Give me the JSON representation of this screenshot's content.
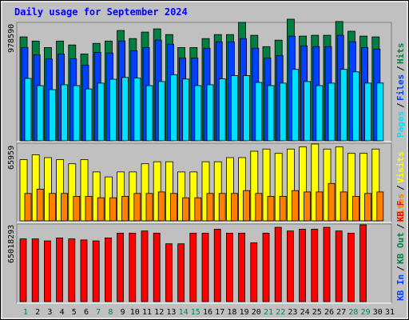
{
  "title": "Daily usage for September 2024",
  "colors": {
    "background": "#c0c0c0",
    "panel": "#c0c0c0",
    "title": "#0000ff",
    "hits": "#008040",
    "files": "#0040ff",
    "pages": "#00e0ff",
    "visits": "#ffff00",
    "sites": "#ff8000",
    "kbf": "#ff0000",
    "weekend_day": "#00805c",
    "weekday": "#000000"
  },
  "chart_data": [
    {
      "type": "bar",
      "panel": "top",
      "max_label": "978590",
      "ylim": [
        0,
        978590
      ],
      "legend": [
        {
          "label": "Pages",
          "color": "#00e0ff"
        },
        {
          "label": "Files",
          "color": "#0040ff"
        },
        {
          "label": "Hits",
          "color": "#008040"
        }
      ],
      "categories": [
        "1",
        "2",
        "3",
        "4",
        "5",
        "6",
        "7",
        "8",
        "9",
        "10",
        "11",
        "12",
        "13",
        "14",
        "15",
        "16",
        "17",
        "18",
        "19",
        "20",
        "21",
        "22",
        "23",
        "24",
        "25",
        "26",
        "27",
        "28",
        "29",
        "30",
        "31"
      ],
      "series": [
        {
          "name": "Hits",
          "values": [
            836000,
            803000,
            751000,
            803000,
            771000,
            699000,
            784000,
            803000,
            888000,
            823000,
            875000,
            901000,
            855000,
            751000,
            751000,
            823000,
            855000,
            855000,
            953000,
            849000,
            758000,
            810000,
            978590,
            843000,
            849000,
            849000,
            960000,
            882000,
            843000,
            836000,
            null
          ]
        },
        {
          "name": "Files",
          "values": [
            751000,
            692000,
            660000,
            699000,
            660000,
            608000,
            712000,
            706000,
            803000,
            725000,
            751000,
            810000,
            777000,
            666000,
            666000,
            745000,
            797000,
            797000,
            823000,
            745000,
            666000,
            686000,
            842000,
            764000,
            758000,
            758000,
            849000,
            797000,
            751000,
            738000,
            null
          ]
        },
        {
          "name": "Pages",
          "values": [
            502000,
            444000,
            412000,
            451000,
            444000,
            418000,
            464000,
            496000,
            510000,
            505000,
            444000,
            477000,
            532000,
            497000,
            444000,
            451000,
            499000,
            525000,
            525000,
            470000,
            444000,
            464000,
            575000,
            477000,
            444000,
            464000,
            575000,
            555000,
            464000,
            465000,
            null
          ]
        }
      ]
    },
    {
      "type": "bar",
      "panel": "middle",
      "max_label": "65959",
      "ylim": [
        0,
        65959
      ],
      "legend": [
        {
          "label": "Sites",
          "color": "#ff8000"
        },
        {
          "label": "Visits",
          "color": "#ffff00"
        }
      ],
      "categories": [
        "1",
        "2",
        "3",
        "4",
        "5",
        "6",
        "7",
        "8",
        "9",
        "10",
        "11",
        "12",
        "13",
        "14",
        "15",
        "16",
        "17",
        "18",
        "19",
        "20",
        "21",
        "22",
        "23",
        "24",
        "25",
        "26",
        "27",
        "28",
        "29",
        "30",
        "31"
      ],
      "series": [
        {
          "name": "Visits",
          "values": [
            52500,
            56700,
            54300,
            52500,
            49000,
            52500,
            42000,
            37700,
            42000,
            42000,
            49000,
            50700,
            50700,
            42000,
            42000,
            50700,
            50700,
            54300,
            54300,
            59800,
            61600,
            57900,
            61600,
            63400,
            65959,
            61600,
            63400,
            57900,
            57900,
            61600,
            null
          ]
        },
        {
          "name": "Sites",
          "values": [
            23500,
            27200,
            23500,
            23500,
            21000,
            21000,
            19800,
            19800,
            21000,
            23500,
            23500,
            24800,
            23500,
            19800,
            19800,
            23500,
            23500,
            23500,
            26000,
            23500,
            21000,
            21000,
            26000,
            24800,
            24800,
            32100,
            24800,
            21000,
            23500,
            24800,
            null
          ]
        }
      ]
    },
    {
      "type": "bar",
      "panel": "bottom",
      "max_label": "65018293",
      "ylim": [
        0,
        65018293
      ],
      "legend": [
        {
          "label": "KB In",
          "color": "#0040ff"
        },
        {
          "label": "KB Out",
          "color": "#008040"
        },
        {
          "label": "KB F",
          "color": "#ff0000"
        }
      ],
      "categories": [
        "1",
        "2",
        "3",
        "4",
        "5",
        "6",
        "7",
        "8",
        "9",
        "10",
        "11",
        "12",
        "13",
        "14",
        "15",
        "16",
        "17",
        "18",
        "19",
        "20",
        "21",
        "22",
        "23",
        "24",
        "25",
        "26",
        "27",
        "28",
        "29",
        "30",
        "31"
      ],
      "series": [
        {
          "name": "KB F",
          "values": [
            53100000,
            53100000,
            51400000,
            53900000,
            53100000,
            52200000,
            51400000,
            53900000,
            58000000,
            58000000,
            59800000,
            58000000,
            49000000,
            49000000,
            58000000,
            58000000,
            61300000,
            58000000,
            58000000,
            49800000,
            58000000,
            62900000,
            59800000,
            61300000,
            61300000,
            62900000,
            59800000,
            58000000,
            65018293,
            null,
            null
          ]
        }
      ]
    }
  ],
  "x_axis": {
    "days": [
      "1",
      "2",
      "3",
      "4",
      "5",
      "6",
      "7",
      "8",
      "9",
      "10",
      "11",
      "12",
      "13",
      "14",
      "15",
      "16",
      "17",
      "18",
      "19",
      "20",
      "21",
      "22",
      "23",
      "24",
      "25",
      "26",
      "27",
      "28",
      "29",
      "30",
      "31"
    ],
    "weekend_days": [
      "1",
      "7",
      "8",
      "14",
      "15",
      "21",
      "22",
      "28",
      "29"
    ]
  }
}
